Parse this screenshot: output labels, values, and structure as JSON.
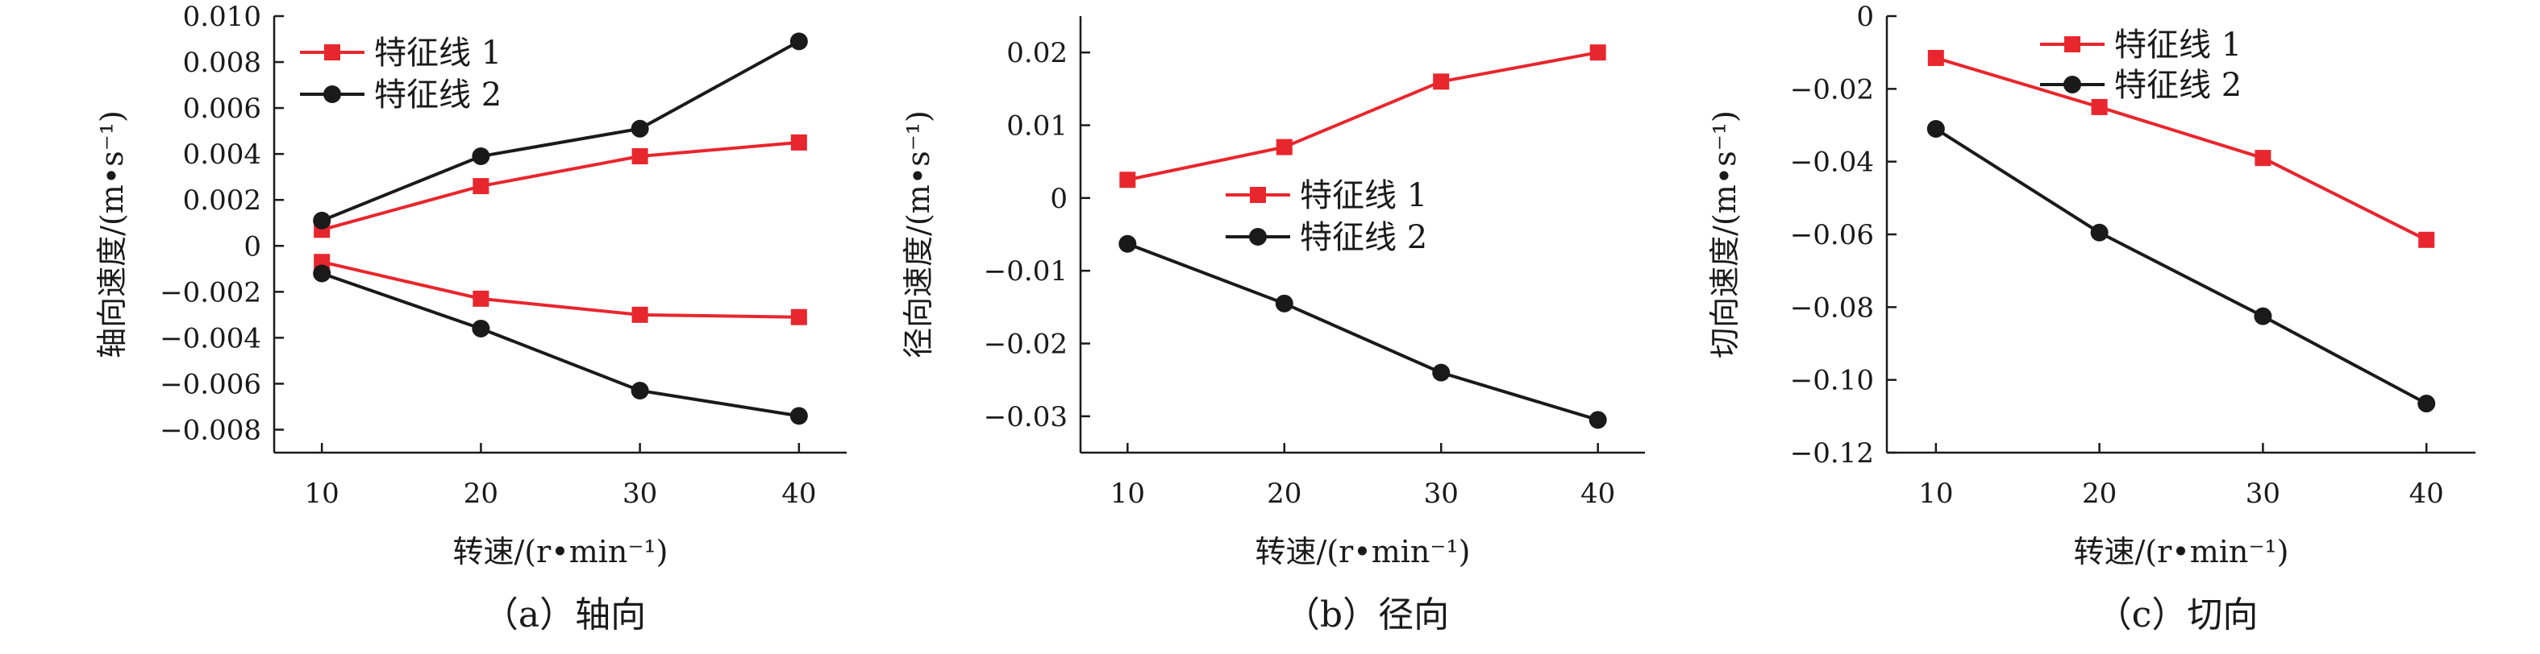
{
  "series_colors": {
    "red": "#e8262d",
    "black": "#1a1a1a"
  },
  "chart_data": [
    {
      "type": "line",
      "caption": "（a）轴向",
      "xlabel": "转速/(r•min⁻¹)",
      "ylabel": "轴向速度/(m•s⁻¹)",
      "x": [
        10,
        20,
        30,
        40
      ],
      "x_ticks": [
        "10",
        "20",
        "30",
        "40"
      ],
      "xlim": [
        7,
        43
      ],
      "ylim": [
        -0.009,
        0.01
      ],
      "y_ticks": [
        "−0.008",
        "−0.006",
        "−0.004",
        "−0.002",
        "0",
        "0.002",
        "0.004",
        "0.006",
        "0.008",
        "0.010"
      ],
      "y_tick_values": [
        -0.008,
        -0.006,
        -0.004,
        -0.002,
        0,
        0.002,
        0.004,
        0.006,
        0.008,
        0.01
      ],
      "legend": {
        "position": "top-left",
        "entries": [
          {
            "label": "特征线 1",
            "color": "#e8262d",
            "marker": "square"
          },
          {
            "label": "特征线 2",
            "color": "#1a1a1a",
            "marker": "circle"
          }
        ]
      },
      "series": [
        {
          "color": "#e8262d",
          "marker": "square",
          "values": [
            0.0007,
            0.0026,
            0.0039,
            0.0045
          ]
        },
        {
          "color": "#e8262d",
          "marker": "square",
          "values": [
            -0.0007,
            -0.0023,
            -0.003,
            -0.0031
          ]
        },
        {
          "color": "#1a1a1a",
          "marker": "circle",
          "values": [
            0.0011,
            0.0039,
            0.0051,
            0.0089
          ]
        },
        {
          "color": "#1a1a1a",
          "marker": "circle",
          "values": [
            -0.0012,
            -0.0036,
            -0.0063,
            -0.0074
          ]
        }
      ]
    },
    {
      "type": "line",
      "caption": "（b）径向",
      "xlabel": "转速/(r•min⁻¹)",
      "ylabel": "径向速度/(m•s⁻¹)",
      "x": [
        10,
        20,
        30,
        40
      ],
      "x_ticks": [
        "10",
        "20",
        "30",
        "40"
      ],
      "xlim": [
        7,
        43
      ],
      "ylim": [
        -0.035,
        0.025
      ],
      "y_ticks": [
        "−0.03",
        "−0.02",
        "−0.01",
        "0",
        "0.01",
        "0.02"
      ],
      "y_tick_values": [
        -0.03,
        -0.02,
        -0.01,
        0,
        0.01,
        0.02
      ],
      "legend": {
        "position": "center",
        "entries": [
          {
            "label": "特征线 1",
            "color": "#e8262d",
            "marker": "square"
          },
          {
            "label": "特征线 2",
            "color": "#1a1a1a",
            "marker": "circle"
          }
        ]
      },
      "series": [
        {
          "color": "#e8262d",
          "marker": "square",
          "values": [
            0.0025,
            0.007,
            0.016,
            0.02
          ]
        },
        {
          "color": "#1a1a1a",
          "marker": "circle",
          "values": [
            -0.0063,
            -0.0145,
            -0.024,
            -0.0305
          ]
        }
      ]
    },
    {
      "type": "line",
      "caption": "（c）切向",
      "xlabel": "转速/(r•min⁻¹)",
      "ylabel": "切向速度/(m•s⁻¹)",
      "x": [
        10,
        20,
        30,
        40
      ],
      "x_ticks": [
        "10",
        "20",
        "30",
        "40"
      ],
      "xlim": [
        7,
        43
      ],
      "ylim": [
        -0.12,
        0
      ],
      "y_ticks": [
        "−0.12",
        "−0.10",
        "−0.08",
        "−0.06",
        "−0.04",
        "−0.02",
        "0"
      ],
      "y_tick_values": [
        -0.12,
        -0.1,
        -0.08,
        -0.06,
        -0.04,
        -0.02,
        0
      ],
      "legend": {
        "position": "top-center",
        "entries": [
          {
            "label": "特征线 1",
            "color": "#e8262d",
            "marker": "square"
          },
          {
            "label": "特征线 2",
            "color": "#1a1a1a",
            "marker": "circle"
          }
        ]
      },
      "series": [
        {
          "color": "#e8262d",
          "marker": "square",
          "values": [
            -0.0115,
            -0.025,
            -0.039,
            -0.0615
          ]
        },
        {
          "color": "#1a1a1a",
          "marker": "circle",
          "values": [
            -0.031,
            -0.0595,
            -0.0825,
            -0.1065
          ]
        }
      ]
    }
  ]
}
